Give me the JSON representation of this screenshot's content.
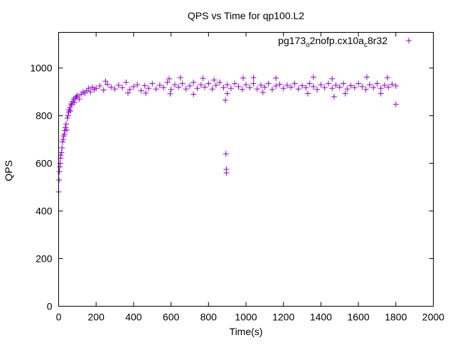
{
  "chart_data": {
    "type": "scatter",
    "title": "QPS vs Time for qp100.L2",
    "xlabel": "Time(s)",
    "ylabel": "QPS",
    "xlim": [
      0,
      2000
    ],
    "ylim": [
      0,
      1150
    ],
    "xticks": [
      0,
      200,
      400,
      600,
      800,
      1000,
      1200,
      1400,
      1600,
      1800,
      2000
    ],
    "yticks": [
      0,
      200,
      400,
      600,
      800,
      1000
    ],
    "grid": false,
    "legend_position": "top-right",
    "series": [
      {
        "name": "pg173_o2nofp.cx10a_c8r32",
        "legend_parts": [
          {
            "text": "pg173",
            "sub": false
          },
          {
            "text": "o",
            "sub": true
          },
          {
            "text": "2nofp.cx10a",
            "sub": false
          },
          {
            "text": "c",
            "sub": true
          },
          {
            "text": "8r32",
            "sub": false
          }
        ],
        "color": "#9400d3",
        "marker": "plus",
        "points": [
          [
            0,
            480
          ],
          [
            2,
            530
          ],
          [
            4,
            565
          ],
          [
            6,
            585
          ],
          [
            8,
            600
          ],
          [
            10,
            622
          ],
          [
            12,
            635
          ],
          [
            15,
            645
          ],
          [
            18,
            665
          ],
          [
            21,
            690
          ],
          [
            24,
            700
          ],
          [
            27,
            715
          ],
          [
            30,
            722
          ],
          [
            33,
            738
          ],
          [
            36,
            750
          ],
          [
            40,
            765
          ],
          [
            43,
            740
          ],
          [
            46,
            790
          ],
          [
            50,
            800
          ],
          [
            53,
            815
          ],
          [
            56,
            825
          ],
          [
            60,
            835
          ],
          [
            63,
            820
          ],
          [
            66,
            850
          ],
          [
            70,
            845
          ],
          [
            75,
            860
          ],
          [
            80,
            870
          ],
          [
            85,
            855
          ],
          [
            90,
            875
          ],
          [
            95,
            880
          ],
          [
            100,
            885
          ],
          [
            110,
            870
          ],
          [
            120,
            890
          ],
          [
            130,
            900
          ],
          [
            140,
            895
          ],
          [
            150,
            905
          ],
          [
            160,
            915
          ],
          [
            170,
            900
          ],
          [
            180,
            920
          ],
          [
            190,
            910
          ],
          [
            200,
            915
          ],
          [
            220,
            925
          ],
          [
            240,
            908
          ],
          [
            260,
            932
          ],
          [
            280,
            920
          ],
          [
            300,
            912
          ],
          [
            320,
            928
          ],
          [
            340,
            918
          ],
          [
            360,
            940
          ],
          [
            380,
            910
          ],
          [
            400,
            922
          ],
          [
            420,
            930
          ],
          [
            440,
            905
          ],
          [
            460,
            926
          ],
          [
            480,
            915
          ],
          [
            500,
            935
          ],
          [
            520,
            912
          ],
          [
            540,
            928
          ],
          [
            560,
            918
          ],
          [
            580,
            940
          ],
          [
            600,
            910
          ],
          [
            620,
            930
          ],
          [
            640,
            920
          ],
          [
            660,
            935
          ],
          [
            680,
            912
          ],
          [
            700,
            925
          ],
          [
            720,
            940
          ],
          [
            740,
            915
          ],
          [
            760,
            930
          ],
          [
            780,
            920
          ],
          [
            800,
            935
          ],
          [
            820,
            912
          ],
          [
            840,
            928
          ],
          [
            860,
            940
          ],
          [
            880,
            918
          ],
          [
            900,
            930
          ],
          [
            920,
            915
          ],
          [
            940,
            935
          ],
          [
            960,
            922
          ],
          [
            980,
            910
          ],
          [
            1000,
            930
          ],
          [
            1020,
            918
          ],
          [
            1040,
            935
          ],
          [
            1060,
            912
          ],
          [
            1080,
            928
          ],
          [
            1100,
            920
          ],
          [
            1120,
            935
          ],
          [
            1140,
            910
          ],
          [
            1160,
            925
          ],
          [
            1180,
            932
          ],
          [
            1200,
            915
          ],
          [
            1220,
            928
          ],
          [
            1240,
            920
          ],
          [
            1260,
            935
          ],
          [
            1280,
            912
          ],
          [
            1300,
            926
          ],
          [
            1320,
            918
          ],
          [
            1340,
            935
          ],
          [
            1360,
            922
          ],
          [
            1380,
            910
          ],
          [
            1400,
            930
          ],
          [
            1420,
            918
          ],
          [
            1440,
            935
          ],
          [
            1460,
            915
          ],
          [
            1480,
            928
          ],
          [
            1500,
            920
          ],
          [
            1520,
            935
          ],
          [
            1540,
            912
          ],
          [
            1560,
            926
          ],
          [
            1580,
            918
          ],
          [
            1600,
            935
          ],
          [
            1620,
            922
          ],
          [
            1640,
            910
          ],
          [
            1660,
            930
          ],
          [
            1680,
            918
          ],
          [
            1700,
            935
          ],
          [
            1720,
            915
          ],
          [
            1740,
            928
          ],
          [
            1760,
            920
          ],
          [
            1780,
            932
          ],
          [
            1800,
            925
          ],
          [
            250,
            945
          ],
          [
            590,
            955
          ],
          [
            650,
            960
          ],
          [
            770,
            957
          ],
          [
            830,
            950
          ],
          [
            985,
            958
          ],
          [
            1040,
            960
          ],
          [
            1160,
            958
          ],
          [
            1360,
            962
          ],
          [
            1460,
            955
          ],
          [
            1645,
            962
          ],
          [
            1755,
            960
          ],
          [
            370,
            895
          ],
          [
            465,
            895
          ],
          [
            595,
            892
          ],
          [
            720,
            890
          ],
          [
            900,
            893
          ],
          [
            1090,
            898
          ],
          [
            1330,
            893
          ],
          [
            1470,
            880
          ],
          [
            1530,
            893
          ],
          [
            1720,
            893
          ],
          [
            890,
            865
          ],
          [
            893,
            640
          ],
          [
            895,
            575
          ],
          [
            896,
            560
          ],
          [
            1800,
            848
          ]
        ]
      }
    ]
  }
}
